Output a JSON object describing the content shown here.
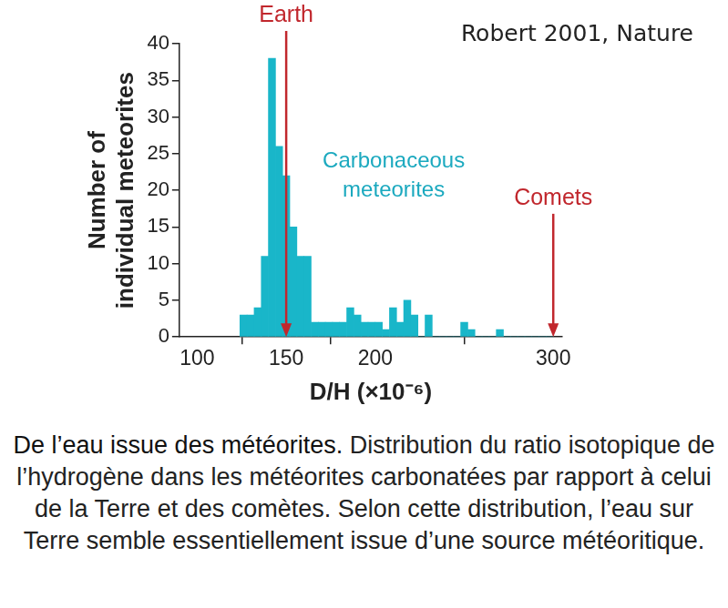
{
  "chart_data": {
    "type": "histogram",
    "source": "Robert 2001, Nature",
    "x_label": "D/H (×10⁻⁶)",
    "y_label": [
      "Number of",
      "individual meteorites"
    ],
    "bins": [
      124,
      128,
      132,
      136,
      140,
      144,
      148,
      152,
      156,
      160,
      164,
      168,
      172,
      176,
      180,
      184,
      188,
      192,
      196,
      200,
      204,
      208,
      212,
      216,
      220,
      224,
      228,
      232,
      236,
      240,
      244,
      248,
      252,
      256,
      260,
      264,
      268,
      272,
      276,
      280,
      284,
      288,
      292,
      296,
      300
    ],
    "values": [
      3,
      3,
      4,
      11,
      38,
      26,
      22,
      15,
      11,
      11,
      2,
      2,
      2,
      2,
      2,
      4,
      3,
      2,
      2,
      2,
      1,
      4,
      2,
      5,
      3,
      0,
      3,
      0,
      0,
      0,
      0,
      2,
      1,
      0,
      0,
      0,
      1,
      0,
      0,
      0,
      0,
      0,
      0,
      0
    ],
    "color": "#19b6c9",
    "series_label": [
      "Carbonaceous",
      "meteorites"
    ],
    "series_label_color": "#1ba9bf",
    "annotations": [
      {
        "text": "Earth",
        "x": 150,
        "color": "#c1272d"
      },
      {
        "text": "Comets",
        "x": 300,
        "color": "#c1272d"
      }
    ],
    "xlim": [
      90,
      305
    ],
    "xticks": [
      100,
      150,
      200,
      300
    ],
    "ylim": [
      0,
      40
    ],
    "yticks": [
      0,
      5,
      10,
      15,
      20,
      25,
      30,
      35,
      40
    ],
    "grid": false,
    "legend": false,
    "caption": {
      "bold": "De l’eau issue des météorites.",
      "text": "Distribution du ratio isotopique de l’hydrogène dans les météorites carbonatées par rapport à celui de la Terre et des comètes. Selon cette distribution, l’eau sur Terre semble essentiellement issue d’une source météoritique."
    }
  }
}
